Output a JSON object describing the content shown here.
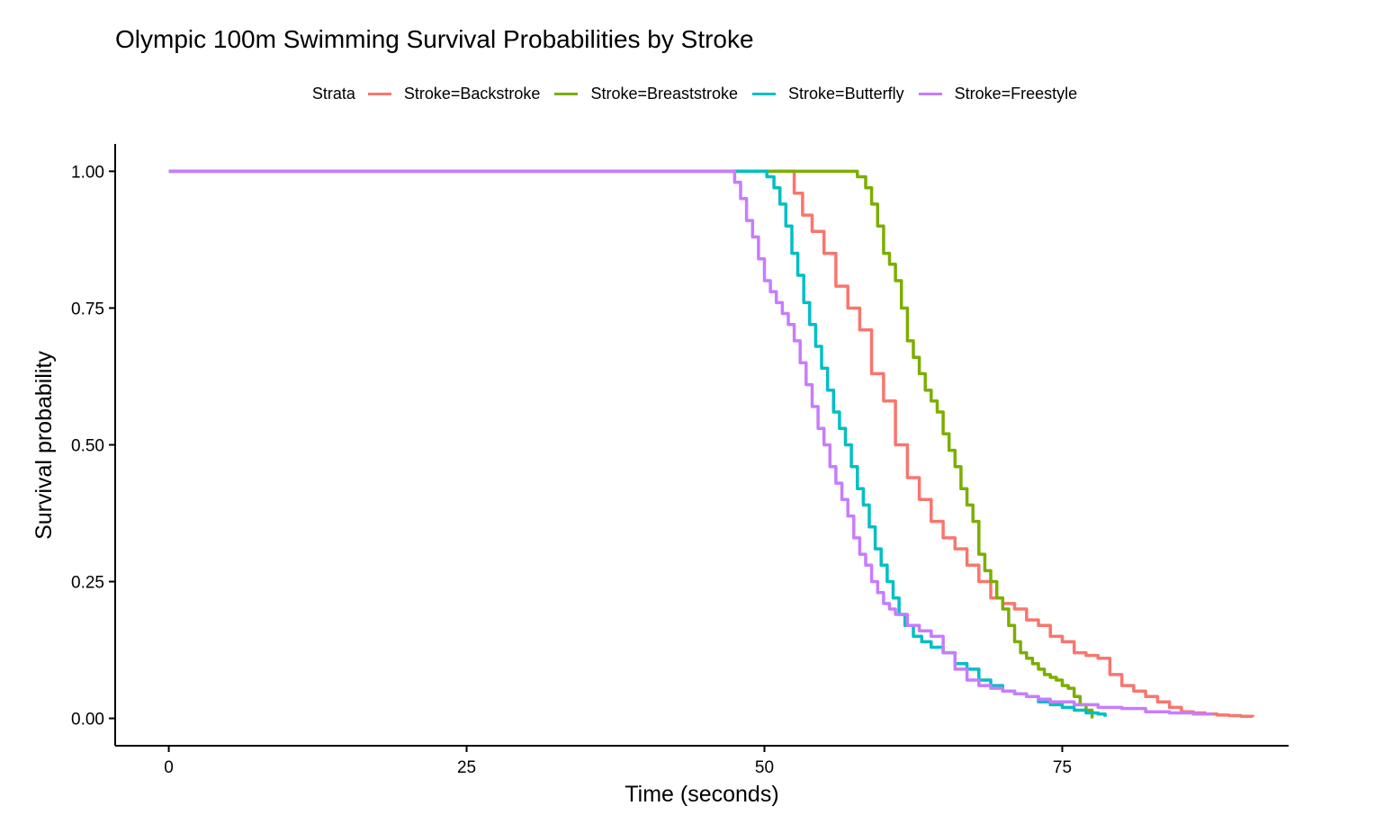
{
  "chart_data": {
    "type": "line",
    "title": "Olympic 100m Swimming Survival Probabilities by Stroke",
    "xlabel": "Time (seconds)",
    "ylabel": "Survival probability",
    "xlim": [
      -4.5,
      94
    ],
    "ylim": [
      -0.05,
      1.05
    ],
    "x_ticks": [
      0,
      25,
      50,
      75
    ],
    "y_ticks": [
      0,
      0.25,
      0.5,
      0.75,
      1.0
    ],
    "x_tick_labels": [
      "0",
      "25",
      "50",
      "75"
    ],
    "y_tick_labels": [
      "0.00",
      "0.25",
      "0.50",
      "0.75",
      "1.00"
    ],
    "grid": false,
    "legend": {
      "position": "top",
      "title": "Strata"
    },
    "series": [
      {
        "name": "Stroke=Backstroke",
        "color": "#F8766D",
        "x": [
          0,
          51.5,
          52.5,
          53.2,
          54.0,
          55.0,
          56.0,
          57.0,
          58.0,
          59.0,
          60.0,
          61.0,
          62.0,
          63.0,
          64.0,
          65.0,
          66.0,
          67.0,
          68.0,
          69.0,
          70.0,
          71.0,
          72.0,
          73.0,
          74.0,
          75.0,
          76.0,
          77.0,
          78.0,
          79.0,
          80.0,
          81.0,
          82.0,
          83.0,
          84.0,
          85.0,
          86.0,
          87.0,
          88.0,
          89.0,
          90.0,
          91.0
        ],
        "y": [
          1.0,
          1.0,
          0.96,
          0.92,
          0.89,
          0.85,
          0.79,
          0.75,
          0.71,
          0.63,
          0.58,
          0.5,
          0.44,
          0.4,
          0.36,
          0.33,
          0.31,
          0.28,
          0.25,
          0.22,
          0.21,
          0.2,
          0.18,
          0.17,
          0.15,
          0.14,
          0.12,
          0.115,
          0.11,
          0.08,
          0.06,
          0.05,
          0.04,
          0.03,
          0.02,
          0.012,
          0.01,
          0.008,
          0.006,
          0.005,
          0.004,
          0.003
        ]
      },
      {
        "name": "Stroke=Breaststroke",
        "color": "#7CAE00",
        "x": [
          0,
          57.0,
          57.8,
          58.5,
          59.0,
          59.5,
          60.0,
          60.5,
          61.0,
          61.5,
          62.0,
          62.5,
          63.0,
          63.5,
          64.0,
          64.5,
          65.0,
          65.5,
          66.0,
          66.5,
          67.0,
          67.5,
          68.0,
          68.5,
          69.0,
          69.5,
          70.0,
          70.5,
          71.0,
          71.5,
          72.0,
          72.5,
          73.0,
          73.5,
          74.0,
          74.5,
          75.0,
          75.5,
          76.0,
          76.5,
          77.0,
          77.5
        ],
        "y": [
          1.0,
          1.0,
          0.99,
          0.97,
          0.94,
          0.9,
          0.85,
          0.83,
          0.8,
          0.75,
          0.69,
          0.66,
          0.63,
          0.6,
          0.58,
          0.56,
          0.52,
          0.49,
          0.46,
          0.42,
          0.39,
          0.36,
          0.3,
          0.27,
          0.25,
          0.22,
          0.2,
          0.17,
          0.14,
          0.12,
          0.11,
          0.1,
          0.09,
          0.08,
          0.075,
          0.07,
          0.06,
          0.055,
          0.04,
          0.025,
          0.015,
          0.0
        ]
      },
      {
        "name": "Stroke=Butterfly",
        "color": "#00BFC4",
        "x": [
          0,
          49.5,
          50.2,
          50.8,
          51.3,
          51.8,
          52.3,
          52.8,
          53.3,
          53.8,
          54.3,
          54.8,
          55.3,
          55.8,
          56.3,
          56.8,
          57.3,
          57.8,
          58.3,
          58.8,
          59.3,
          59.8,
          60.3,
          60.8,
          61.3,
          61.8,
          62.5,
          63.2,
          64.0,
          65.0,
          66.0,
          67.0,
          68.0,
          69.0,
          70.0,
          71.0,
          72.0,
          73.0,
          74.0,
          75.0,
          76.0,
          77.0,
          78.0,
          78.6
        ],
        "y": [
          1.0,
          1.0,
          0.99,
          0.97,
          0.94,
          0.9,
          0.85,
          0.81,
          0.76,
          0.72,
          0.68,
          0.64,
          0.6,
          0.56,
          0.53,
          0.5,
          0.46,
          0.42,
          0.39,
          0.35,
          0.31,
          0.28,
          0.25,
          0.22,
          0.19,
          0.17,
          0.15,
          0.14,
          0.13,
          0.12,
          0.1,
          0.09,
          0.07,
          0.06,
          0.05,
          0.045,
          0.04,
          0.03,
          0.025,
          0.02,
          0.015,
          0.01,
          0.008,
          0.003
        ]
      },
      {
        "name": "Stroke=Freestyle",
        "color": "#C77CFF",
        "x": [
          0,
          47.0,
          47.5,
          48.0,
          48.5,
          49.0,
          49.5,
          50.0,
          50.5,
          51.0,
          51.5,
          52.0,
          52.5,
          53.0,
          53.5,
          54.0,
          54.5,
          55.0,
          55.5,
          56.0,
          56.5,
          57.0,
          57.5,
          58.0,
          58.5,
          59.0,
          59.5,
          60.0,
          60.5,
          61.0,
          62.0,
          63.0,
          64.0,
          65.0,
          66.0,
          67.0,
          68.0,
          69.0,
          70.0,
          71.0,
          72.0,
          73.0,
          74.0,
          75.0,
          76.0,
          78.0,
          80.0,
          82.0,
          84.0,
          86.0,
          87.5
        ],
        "y": [
          1.0,
          1.0,
          0.98,
          0.95,
          0.91,
          0.88,
          0.84,
          0.8,
          0.78,
          0.76,
          0.74,
          0.72,
          0.69,
          0.65,
          0.61,
          0.57,
          0.53,
          0.5,
          0.46,
          0.43,
          0.4,
          0.37,
          0.33,
          0.3,
          0.28,
          0.25,
          0.23,
          0.21,
          0.2,
          0.19,
          0.17,
          0.16,
          0.15,
          0.12,
          0.09,
          0.07,
          0.06,
          0.055,
          0.05,
          0.045,
          0.04,
          0.035,
          0.03,
          0.03,
          0.025,
          0.02,
          0.018,
          0.012,
          0.01,
          0.008,
          0.005
        ]
      }
    ]
  }
}
